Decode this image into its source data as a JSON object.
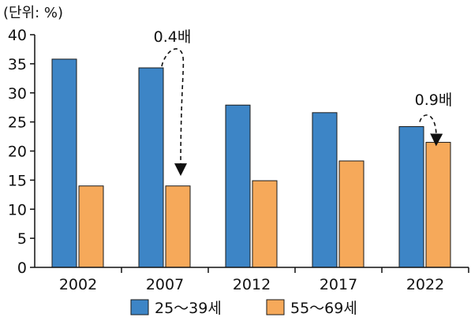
{
  "chart_data": {
    "type": "bar",
    "unit_label": "(단위: %)",
    "categories": [
      "2002",
      "2007",
      "2012",
      "2017",
      "2022"
    ],
    "series": [
      {
        "name": "25～39세",
        "color": "#3d85c6",
        "values": [
          35.8,
          34.3,
          27.9,
          26.6,
          24.2
        ]
      },
      {
        "name": "55～69세",
        "color": "#f6a95a",
        "values": [
          14.0,
          14.0,
          14.9,
          18.3,
          21.5
        ]
      }
    ],
    "ylim": [
      0,
      40
    ],
    "yticks": [
      0,
      5,
      10,
      15,
      20,
      25,
      30,
      35,
      40
    ],
    "grid": false,
    "legend_position": "bottom",
    "annotations": [
      {
        "text": "0.4배",
        "category": "2007",
        "from": "25～39세",
        "to": "55～69세"
      },
      {
        "text": "0.9배",
        "category": "2022",
        "from": "25～39세",
        "to": "55～69세"
      }
    ]
  }
}
